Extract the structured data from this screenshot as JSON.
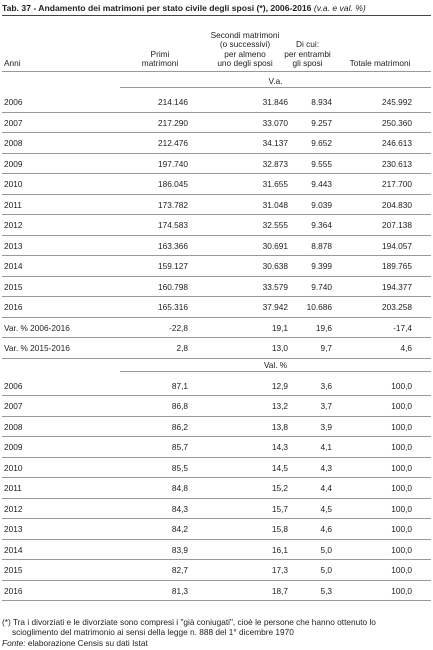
{
  "title": "Tab. 37 - Andamento dei matrimoni per stato civile degli sposi (*), 2006-2016",
  "title_note": "(v.a. e val. %)",
  "columns": [
    [
      "Anni"
    ],
    [
      "Primi",
      "matrimoni"
    ],
    [
      "Secondi matrimoni",
      "(o successivi)",
      "per almeno",
      "uno degli sposi"
    ],
    [
      "Di cui:",
      "per entrambi",
      "gli sposi"
    ],
    [
      "Totale matrimoni"
    ]
  ],
  "sections": [
    {
      "label": "V.a.",
      "rows": [
        [
          "2006",
          "214.146",
          "31.846",
          "8.934",
          "245.992"
        ],
        [
          "2007",
          "217.290",
          "33.070",
          "9.257",
          "250.360"
        ],
        [
          "2008",
          "212.476",
          "34.137",
          "9.652",
          "246.613"
        ],
        [
          "2009",
          "197.740",
          "32.873",
          "9.555",
          "230.613"
        ],
        [
          "2010",
          "186.045",
          "31.655",
          "9.443",
          "217.700"
        ],
        [
          "2011",
          "173.782",
          "31.048",
          "9.039",
          "204.830"
        ],
        [
          "2012",
          "174.583",
          "32.555",
          "9.364",
          "207.138"
        ],
        [
          "2013",
          "163.366",
          "30.691",
          "8.878",
          "194.057"
        ],
        [
          "2014",
          "159.127",
          "30.638",
          "9.399",
          "189.765"
        ],
        [
          "2015",
          "160.798",
          "33.579",
          "9.740",
          "194.377"
        ],
        [
          "2016",
          "165.316",
          "37.942",
          "10.686",
          "203.258"
        ],
        [
          "Var. % 2006-2016",
          "-22,8",
          "19,1",
          "19,6",
          "-17,4"
        ],
        [
          "Var. % 2015-2016",
          "2,8",
          "13,0",
          "9,7",
          "4,6"
        ]
      ]
    },
    {
      "label": "Val. %",
      "rows": [
        [
          "2006",
          "87,1",
          "12,9",
          "3,6",
          "100,0"
        ],
        [
          "2007",
          "86,8",
          "13,2",
          "3,7",
          "100,0"
        ],
        [
          "2008",
          "86,2",
          "13,8",
          "3,9",
          "100,0"
        ],
        [
          "2009",
          "85,7",
          "14,3",
          "4,1",
          "100,0"
        ],
        [
          "2010",
          "85,5",
          "14,5",
          "4,3",
          "100,0"
        ],
        [
          "2011",
          "84,8",
          "15,2",
          "4,4",
          "100,0"
        ],
        [
          "2012",
          "84,3",
          "15,7",
          "4,5",
          "100,0"
        ],
        [
          "2013",
          "84,2",
          "15,8",
          "4,6",
          "100,0"
        ],
        [
          "2014",
          "83,9",
          "16,1",
          "5,0",
          "100,0"
        ],
        [
          "2015",
          "82,7",
          "17,3",
          "5,0",
          "100,0"
        ],
        [
          "2016",
          "81,3",
          "18,7",
          "5,3",
          "100,0"
        ]
      ]
    }
  ],
  "footnote": [
    "(*) Tra i divorziati e le divorziate sono compresi i \"già coniugati\", cioè le persone che hanno ottenuto lo",
    "scioglimento del matrimonio ai sensi della legge n. 888 del 1° dicembre 1970"
  ],
  "source_label": "Fonte:",
  "source": "elaborazione Censis su dati Istat"
}
